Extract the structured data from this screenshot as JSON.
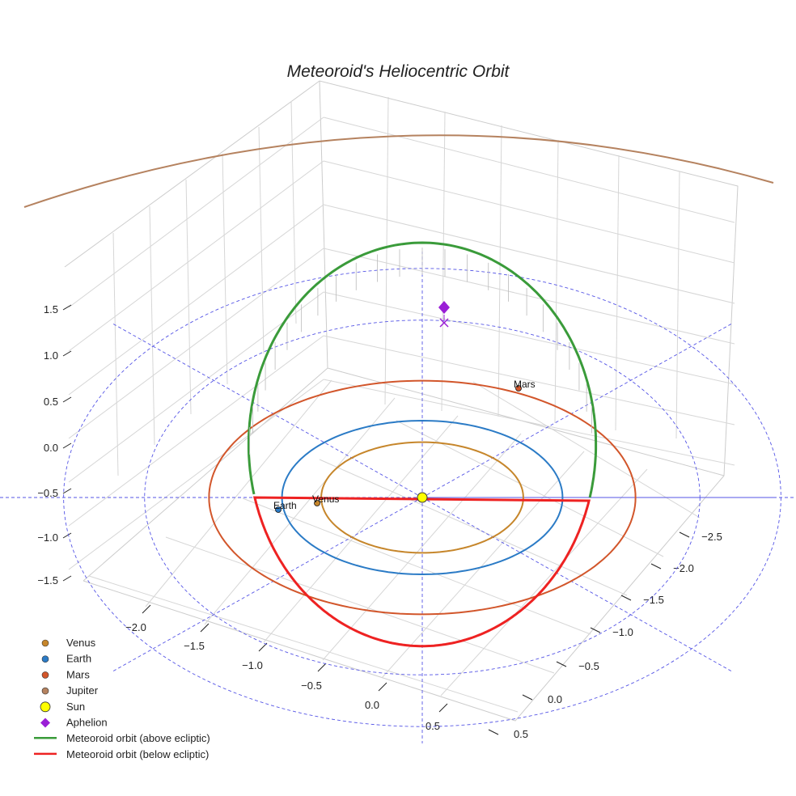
{
  "chart_data": {
    "type": "3d-line",
    "title": "Meteoroid's Heliocentric Orbit",
    "xlabel": "",
    "ylabel": "",
    "zlabel": "",
    "x_ticks": [
      "−2.0",
      "−1.5",
      "−1.0",
      "−0.5",
      "0.0",
      "0.5"
    ],
    "y_ticks": [
      "−2.5",
      "−2.0",
      "−1.5",
      "−1.0",
      "−0.5",
      "0.0",
      "0.5"
    ],
    "z_ticks": [
      "1.5",
      "1.0",
      "0.5",
      "0.0",
      "−0.5",
      "−1.0",
      "−1.5"
    ],
    "planets": [
      {
        "name": "Venus",
        "label": "Venus",
        "color": "#c6862b",
        "semi_major_au": 0.72
      },
      {
        "name": "Earth",
        "label": "Earth",
        "color": "#2b7bc6",
        "semi_major_au": 1.0
      },
      {
        "name": "Mars",
        "label": "Mars",
        "color": "#d2562b",
        "semi_major_au": 1.52
      },
      {
        "name": "Jupiter",
        "label": "",
        "color": "#b5825f",
        "semi_major_au": 5.2
      }
    ],
    "sun": {
      "name": "Sun",
      "color": "#ffff00"
    },
    "meteoroid": {
      "perihelion_au": 0.98,
      "aphelion_au": 1.68,
      "inclination_deg": 23,
      "above_color": "#3a9b3a",
      "below_color": "#ee2222"
    },
    "aphelion": {
      "name": "Aphelion",
      "color": "#9a1fd6"
    },
    "legend": [
      {
        "label": "Venus",
        "kind": "dot",
        "color": "#c6862b"
      },
      {
        "label": "Earth",
        "kind": "dot",
        "color": "#2b7bc6"
      },
      {
        "label": "Mars",
        "kind": "dot",
        "color": "#d2562b"
      },
      {
        "label": "Jupiter",
        "kind": "dot",
        "color": "#b5825f"
      },
      {
        "label": "Sun",
        "kind": "sun",
        "color": "#ffff00"
      },
      {
        "label": "Aphelion",
        "kind": "diamond",
        "color": "#9a1fd6"
      },
      {
        "label": "Meteoroid orbit (above ecliptic)",
        "kind": "line",
        "color": "#3a9b3a"
      },
      {
        "label": "Meteoroid orbit (below ecliptic)",
        "kind": "line",
        "color": "#ee2222"
      }
    ],
    "legend_position": "bottom-left"
  }
}
